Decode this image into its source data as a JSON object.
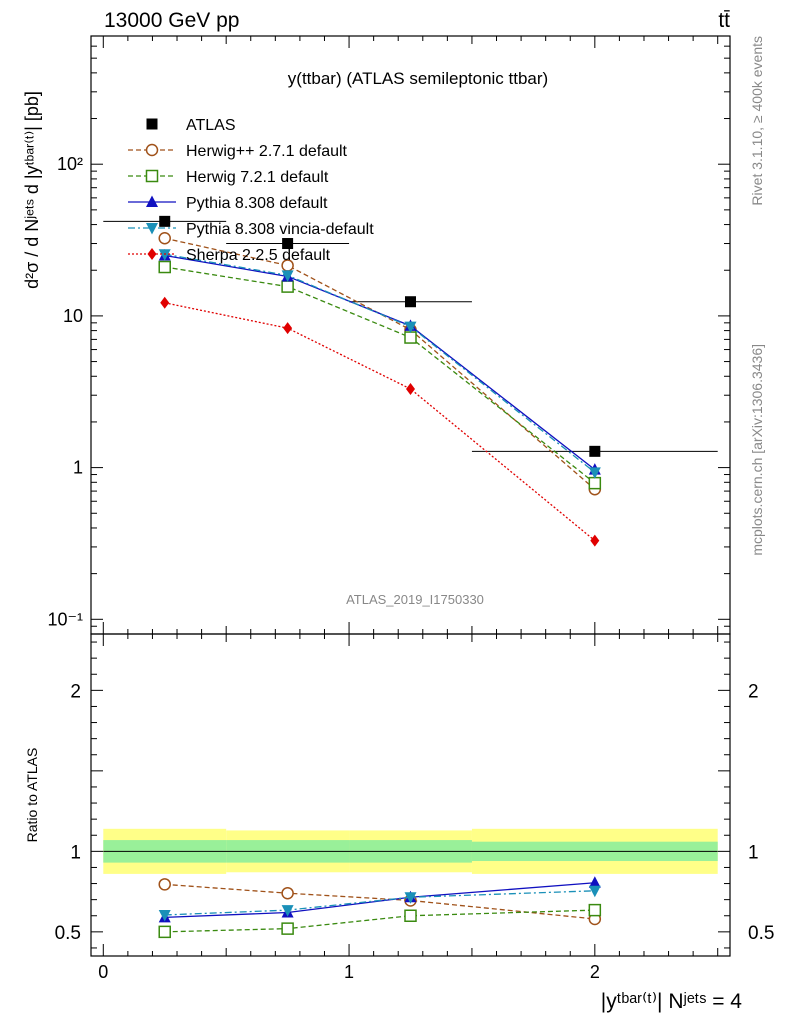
{
  "header": {
    "energy_label": "13000 GeV pp",
    "process_label": "tt̄",
    "side_rivet": "Rivet 3.1.10, ≥ 400k events",
    "side_url": "mcplots.cern.ch [arXiv:1306.3436]",
    "analysis_id": "ATLAS_2019_I1750330"
  },
  "chart_data": [
    {
      "type": "line",
      "title": "y(ttbar) (ATLAS semileptonic ttbar)",
      "ylabel": "d²σ / d Nʲᵉᵗˢ d |yᵗᵇᵃʳ⁽ᵗ⁾| [pb]",
      "yscale": "log",
      "ylim": [
        0.08,
        700
      ],
      "xlim": [
        -0.05,
        2.55
      ],
      "ytick_labels": [
        "10⁻¹",
        "1",
        "10",
        "10²"
      ],
      "x": [
        0.25,
        0.75,
        1.25,
        2.0
      ],
      "legend_position": "top-left",
      "series": [
        {
          "name": "ATLAS",
          "color": "#000000",
          "marker": "square-filled",
          "line": "none",
          "values": [
            42,
            30,
            12.4,
            1.28
          ],
          "x_err": [
            0.25,
            0.25,
            0.25,
            0.5
          ]
        },
        {
          "name": "Herwig++ 2.7.1 default",
          "color": "#a0521a",
          "marker": "circle-open",
          "line": "dashed",
          "values": [
            32.5,
            21.5,
            8.1,
            0.72
          ]
        },
        {
          "name": "Herwig 7.2.1 default",
          "color": "#3a8a10",
          "marker": "square-open",
          "line": "dashed",
          "values": [
            21.0,
            15.6,
            7.2,
            0.79
          ]
        },
        {
          "name": "Pythia 8.308 default",
          "color": "#1010c0",
          "marker": "triangle-up",
          "line": "solid",
          "values": [
            25.0,
            18.2,
            8.6,
            0.97
          ]
        },
        {
          "name": "Pythia 8.308 vincia-default",
          "color": "#1a90b8",
          "marker": "triangle-down",
          "line": "dashdot",
          "values": [
            25.5,
            18.5,
            8.5,
            0.93
          ]
        },
        {
          "name": "Sherpa 2.2.5 default",
          "color": "#e00000",
          "marker": "diamond",
          "line": "dotted",
          "values": [
            12.2,
            8.3,
            3.3,
            0.33
          ]
        }
      ]
    },
    {
      "type": "line",
      "ylabel": "Ratio to ATLAS",
      "xlabel": "|yᵗᵇᵃʳ⁽ᵗ⁾| Nʲᵉᵗˢ = 4",
      "ylim": [
        0.35,
        2.35
      ],
      "xlim": [
        -0.05,
        2.55
      ],
      "ytick_labels": [
        "0.5",
        "1",
        "2"
      ],
      "xtick_labels": [
        "0",
        "1",
        "2"
      ],
      "x": [
        0.25,
        0.75,
        1.25,
        2.0
      ],
      "bands": {
        "yellow": {
          "color": "#ffff88",
          "bins": [
            [
              0,
              0.5,
              0.86,
              1.14
            ],
            [
              0.5,
              1.0,
              0.87,
              1.13
            ],
            [
              1.0,
              1.5,
              0.87,
              1.13
            ],
            [
              1.5,
              2.5,
              0.86,
              1.14
            ]
          ]
        },
        "green": {
          "color": "#99f099",
          "bins": [
            [
              0,
              0.5,
              0.93,
              1.07
            ],
            [
              0.5,
              1.0,
              0.93,
              1.07
            ],
            [
              1.0,
              1.5,
              0.93,
              1.07
            ],
            [
              1.5,
              2.5,
              0.94,
              1.06
            ]
          ]
        }
      },
      "series": [
        {
          "name": "Herwig++ 2.7.1 default",
          "values": [
            0.795,
            0.74,
            0.695,
            0.58
          ]
        },
        {
          "name": "Herwig 7.2.1 default",
          "values": [
            0.5,
            0.52,
            0.6,
            0.635
          ]
        },
        {
          "name": "Pythia 8.308 default",
          "values": [
            0.59,
            0.62,
            0.715,
            0.805
          ]
        },
        {
          "name": "Pythia 8.308 vincia-default",
          "values": [
            0.605,
            0.635,
            0.715,
            0.755
          ]
        }
      ]
    }
  ]
}
